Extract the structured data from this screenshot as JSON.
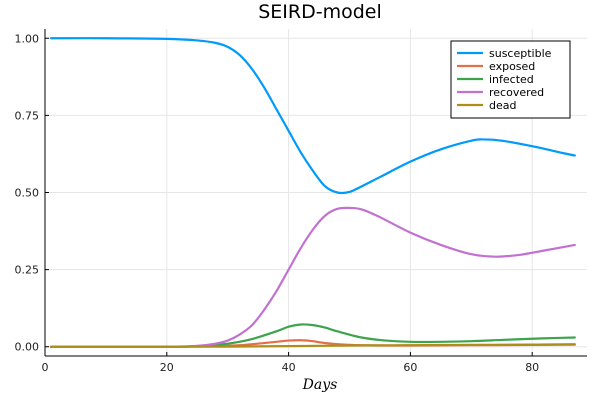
{
  "chart_data": {
    "type": "line",
    "title": "SEIRD-model",
    "xlabel": "Days",
    "ylabel": "",
    "xlim": [
      0,
      89
    ],
    "ylim": [
      -0.03,
      1.03
    ],
    "xticks": [
      0,
      20,
      40,
      60,
      80
    ],
    "yticks": [
      0.0,
      0.25,
      0.5,
      0.75,
      1.0
    ],
    "ytick_labels": [
      "0.00",
      "0.25",
      "0.50",
      "0.75",
      "1.00"
    ],
    "xtick_labels": [
      "0",
      "20",
      "40",
      "60",
      "80"
    ],
    "grid": true,
    "legend_position": "top-right",
    "series": [
      {
        "name": "susceptible",
        "color": "#009af9",
        "x": [
          1,
          10,
          20,
          25,
          28,
          30,
          32,
          34,
          36,
          38,
          40,
          42,
          44,
          46,
          48,
          50,
          52,
          55,
          60,
          65,
          70,
          72,
          75,
          80,
          85,
          87
        ],
        "y": [
          1.0,
          1.0,
          0.998,
          0.993,
          0.985,
          0.972,
          0.945,
          0.9,
          0.84,
          0.77,
          0.7,
          0.63,
          0.57,
          0.52,
          0.5,
          0.502,
          0.52,
          0.55,
          0.6,
          0.64,
          0.668,
          0.672,
          0.668,
          0.65,
          0.628,
          0.62
        ]
      },
      {
        "name": "exposed",
        "color": "#e26f46",
        "x": [
          1,
          20,
          28,
          32,
          36,
          40,
          42,
          44,
          46,
          50,
          55,
          60,
          70,
          80,
          87
        ],
        "y": [
          0.0,
          0.0,
          0.002,
          0.005,
          0.012,
          0.02,
          0.021,
          0.018,
          0.012,
          0.006,
          0.004,
          0.004,
          0.005,
          0.006,
          0.007
        ]
      },
      {
        "name": "infected",
        "color": "#3da44d",
        "x": [
          1,
          20,
          26,
          30,
          34,
          38,
          40,
          42,
          44,
          46,
          48,
          52,
          56,
          60,
          65,
          70,
          75,
          80,
          85,
          87
        ],
        "y": [
          0.0,
          0.0,
          0.003,
          0.01,
          0.025,
          0.05,
          0.065,
          0.072,
          0.07,
          0.062,
          0.05,
          0.03,
          0.02,
          0.016,
          0.016,
          0.018,
          0.022,
          0.026,
          0.029,
          0.03
        ]
      },
      {
        "name": "recovered",
        "color": "#c271d2",
        "x": [
          1,
          20,
          25,
          28,
          30,
          32,
          34,
          36,
          38,
          40,
          42,
          44,
          46,
          48,
          50,
          52,
          55,
          60,
          65,
          70,
          74,
          78,
          82,
          87
        ],
        "y": [
          0.0,
          0.0,
          0.003,
          0.01,
          0.02,
          0.04,
          0.07,
          0.12,
          0.18,
          0.25,
          0.32,
          0.38,
          0.425,
          0.447,
          0.45,
          0.445,
          0.42,
          0.37,
          0.33,
          0.3,
          0.292,
          0.298,
          0.312,
          0.33
        ]
      },
      {
        "name": "dead",
        "color": "#ac8e18",
        "x": [
          1,
          20,
          30,
          40,
          50,
          60,
          70,
          80,
          87
        ],
        "y": [
          0.0,
          0.0,
          0.0005,
          0.002,
          0.004,
          0.005,
          0.006,
          0.007,
          0.008
        ]
      }
    ]
  }
}
